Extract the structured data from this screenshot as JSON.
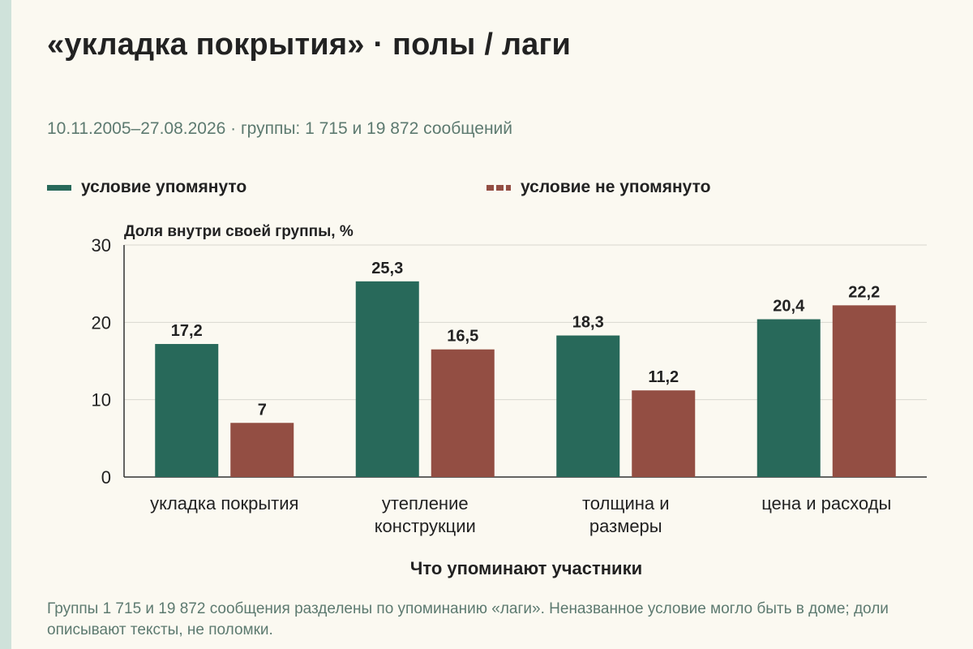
{
  "title": "«укладка покрытия» · полы / лаги",
  "subtitle": "10.11.2005–27.08.2026 · группы: 1 715 и 19 872 сообщений",
  "legend": [
    {
      "label": "условие упомянуто",
      "color": "#28695a",
      "style": "solid"
    },
    {
      "label": "условие не упомянуто",
      "color": "#934e43",
      "style": "dashed"
    }
  ],
  "note": "Группы 1 715 и 19 872 сообщения разделены по упоминанию «лаги». Неназванное условие могло быть в доме; доли описывают тексты, не поломки.",
  "chart_data": {
    "type": "bar",
    "ylabel": "Доля внутри своей группы, %",
    "xlabel": "Что упоминают участники",
    "ylim": [
      0,
      30
    ],
    "yticks": [
      0,
      10,
      20,
      30
    ],
    "grid": true,
    "categories": [
      [
        "укладка покрытия"
      ],
      [
        "утепление",
        "конструкции"
      ],
      [
        "толщина и",
        "размеры"
      ],
      [
        "цена и расходы"
      ]
    ],
    "series": [
      {
        "name": "условие упомянуто",
        "color": "#28695a",
        "values": [
          17.2,
          25.3,
          18.3,
          20.4
        ],
        "labels": [
          "17,2",
          "25,3",
          "18,3",
          "20,4"
        ]
      },
      {
        "name": "условие не упомянуто",
        "color": "#934e43",
        "values": [
          7,
          16.5,
          11.2,
          22.2
        ],
        "labels": [
          "7",
          "16,5",
          "11,2",
          "22,2"
        ]
      }
    ]
  }
}
